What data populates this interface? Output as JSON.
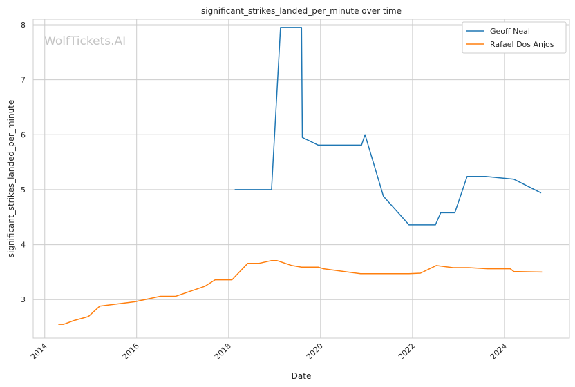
{
  "chart_data": {
    "type": "line",
    "title": "significant_strikes_landed_per_minute over time",
    "xlabel": "Date",
    "ylabel": "significant_strikes_landed_per_minute",
    "watermark": "WolfTickets.AI",
    "xlim": [
      "2013-10-01",
      "2025-06-01"
    ],
    "ylim": [
      2.3,
      8.1
    ],
    "x_ticks": [
      "2014",
      "2016",
      "2018",
      "2020",
      "2022",
      "2024"
    ],
    "y_ticks": [
      "3",
      "4",
      "5",
      "6",
      "7",
      "8"
    ],
    "grid": true,
    "legend_position": "top-right",
    "series": [
      {
        "name": "Geoff Neal",
        "color": "#1f77b4",
        "points": [
          [
            "2018-02-18",
            5.0
          ],
          [
            "2018-12-08",
            5.0
          ],
          [
            "2019-02-17",
            7.95
          ],
          [
            "2019-08-03",
            7.95
          ],
          [
            "2019-08-10",
            5.95
          ],
          [
            "2019-12-14",
            5.81
          ],
          [
            "2020-11-22",
            5.81
          ],
          [
            "2020-12-20",
            6.0
          ],
          [
            "2021-05-15",
            4.88
          ],
          [
            "2021-12-04",
            4.36
          ],
          [
            "2022-07-02",
            4.36
          ],
          [
            "2022-08-13",
            4.58
          ],
          [
            "2022-12-03",
            4.58
          ],
          [
            "2023-03-11",
            5.24
          ],
          [
            "2023-08-05",
            5.24
          ],
          [
            "2024-03-16",
            5.19
          ],
          [
            "2024-10-19",
            4.94
          ]
        ]
      },
      {
        "name": "Rafael Dos Anjos",
        "color": "#ff7f0e",
        "points": [
          [
            "2014-04-19",
            2.55
          ],
          [
            "2014-05-31",
            2.55
          ],
          [
            "2014-08-23",
            2.62
          ],
          [
            "2014-12-13",
            2.69
          ],
          [
            "2015-03-14",
            2.88
          ],
          [
            "2015-12-19",
            2.96
          ],
          [
            "2016-07-07",
            3.06
          ],
          [
            "2016-11-05",
            3.06
          ],
          [
            "2017-06-25",
            3.24
          ],
          [
            "2017-09-16",
            3.36
          ],
          [
            "2018-01-27",
            3.36
          ],
          [
            "2018-06-02",
            3.66
          ],
          [
            "2018-09-01",
            3.66
          ],
          [
            "2018-12-08",
            3.71
          ],
          [
            "2019-01-19",
            3.71
          ],
          [
            "2019-05-18",
            3.62
          ],
          [
            "2019-08-03",
            3.59
          ],
          [
            "2019-12-14",
            3.59
          ],
          [
            "2020-01-25",
            3.56
          ],
          [
            "2020-11-14",
            3.47
          ],
          [
            "2021-12-04",
            3.47
          ],
          [
            "2022-03-05",
            3.48
          ],
          [
            "2022-07-09",
            3.62
          ],
          [
            "2022-11-19",
            3.58
          ],
          [
            "2023-03-25",
            3.58
          ],
          [
            "2023-08-19",
            3.56
          ],
          [
            "2024-02-17",
            3.56
          ],
          [
            "2024-03-16",
            3.51
          ],
          [
            "2024-10-26",
            3.5
          ]
        ]
      }
    ]
  }
}
